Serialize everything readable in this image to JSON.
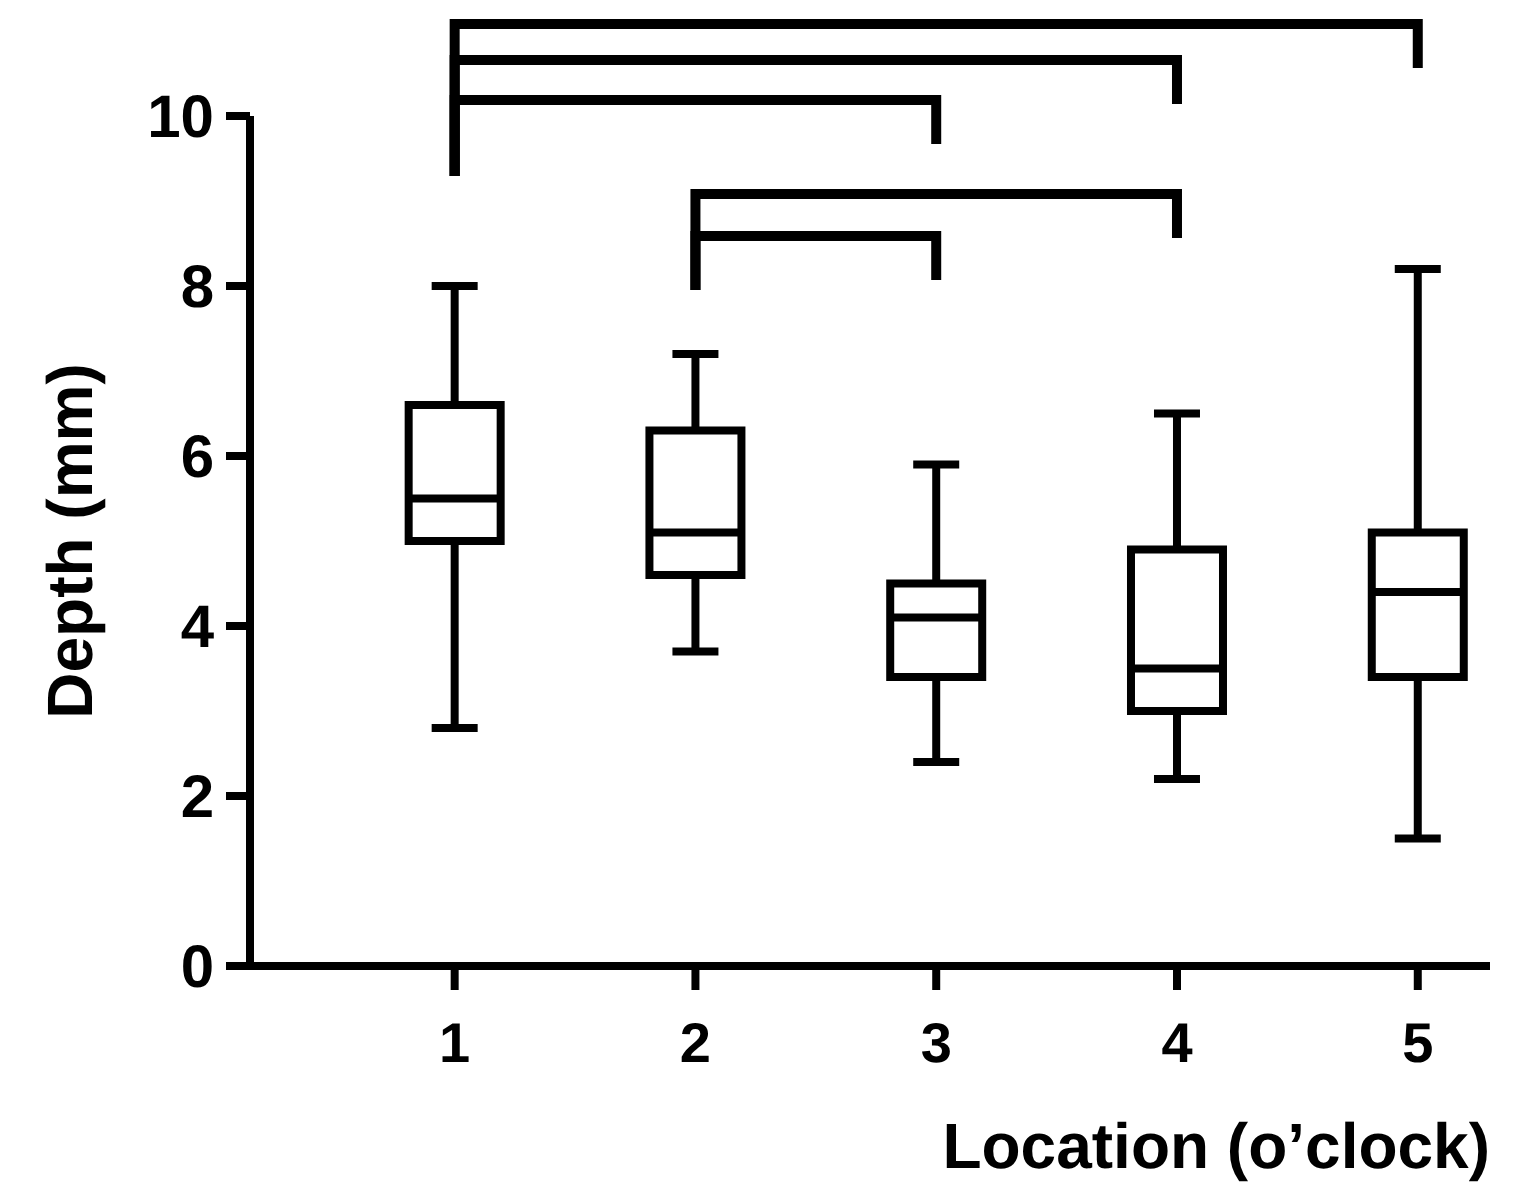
{
  "chart_data": {
    "type": "box",
    "xlabel": "Location (o’clock)",
    "ylabel": "Depth (mm)",
    "categories": [
      "1",
      "2",
      "3",
      "4",
      "5"
    ],
    "boxes": [
      {
        "low": 2.8,
        "q1": 5.0,
        "median": 5.5,
        "q3": 6.6,
        "high": 8.0
      },
      {
        "low": 3.7,
        "q1": 4.6,
        "median": 5.1,
        "q3": 6.3,
        "high": 7.2
      },
      {
        "low": 2.4,
        "q1": 3.4,
        "median": 4.1,
        "q3": 4.5,
        "high": 5.9
      },
      {
        "low": 2.2,
        "q1": 3.0,
        "median": 3.5,
        "q3": 4.9,
        "high": 6.5
      },
      {
        "low": 1.5,
        "q1": 3.4,
        "median": 4.4,
        "q3": 5.1,
        "high": 8.2
      }
    ],
    "color": "#000000",
    "ylim": [
      0,
      10
    ],
    "yticks": [
      0,
      2,
      4,
      6,
      8,
      10
    ],
    "grid": false
  }
}
